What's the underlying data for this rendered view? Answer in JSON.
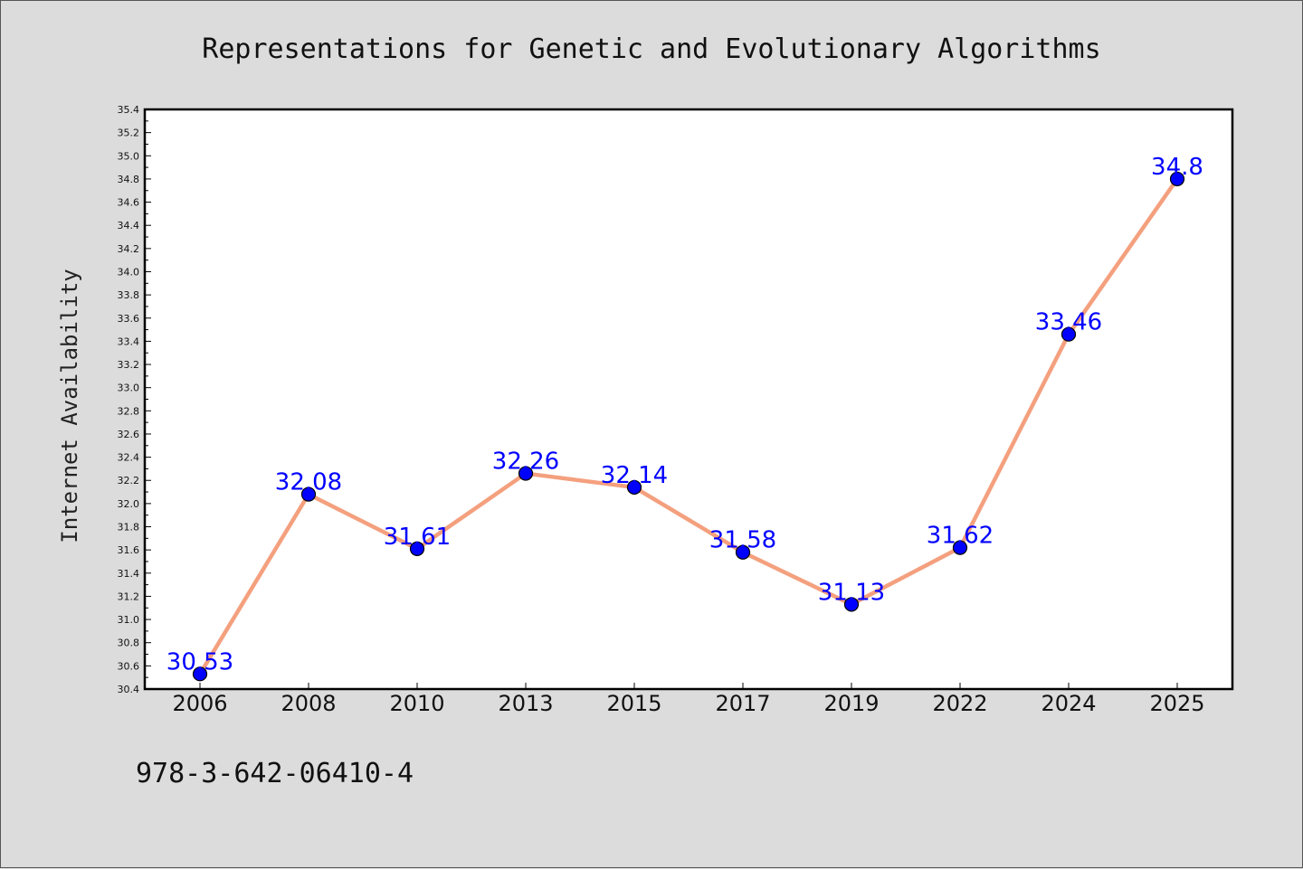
{
  "chart_data": {
    "type": "line",
    "title": "Representations for Genetic and Evolutionary Algorithms",
    "ylabel": "Internet Availability",
    "xlabel": "",
    "categories": [
      "2006",
      "2008",
      "2010",
      "2013",
      "2015",
      "2017",
      "2019",
      "2022",
      "2024",
      "2025"
    ],
    "series": [
      {
        "values": [
          30.53,
          32.08,
          31.61,
          32.26,
          32.14,
          31.58,
          31.13,
          31.62,
          33.46,
          34.8
        ],
        "data_labels": [
          "30.53",
          "32.08",
          "31.61",
          "32.26",
          "32.14",
          "31.58",
          "31.13",
          "31.62",
          "33.46",
          "34.8"
        ]
      }
    ],
    "ylim": [
      30.4,
      35.4
    ],
    "yticks": [
      "30.4",
      "30.6",
      "30.8",
      "31.0",
      "31.2",
      "31.4",
      "31.6",
      "31.8",
      "32.0",
      "32.2",
      "32.4",
      "32.6",
      "32.8",
      "33.0",
      "33.2",
      "33.4",
      "33.6",
      "33.8",
      "34.0",
      "34.2",
      "34.4",
      "34.6",
      "34.8",
      "35.0",
      "35.2",
      "35.4"
    ],
    "grid": false,
    "line_color": "#f4a07e",
    "marker_color": "#0000ff",
    "label_color": "#0000ff"
  },
  "footer": "978-3-642-06410-4"
}
